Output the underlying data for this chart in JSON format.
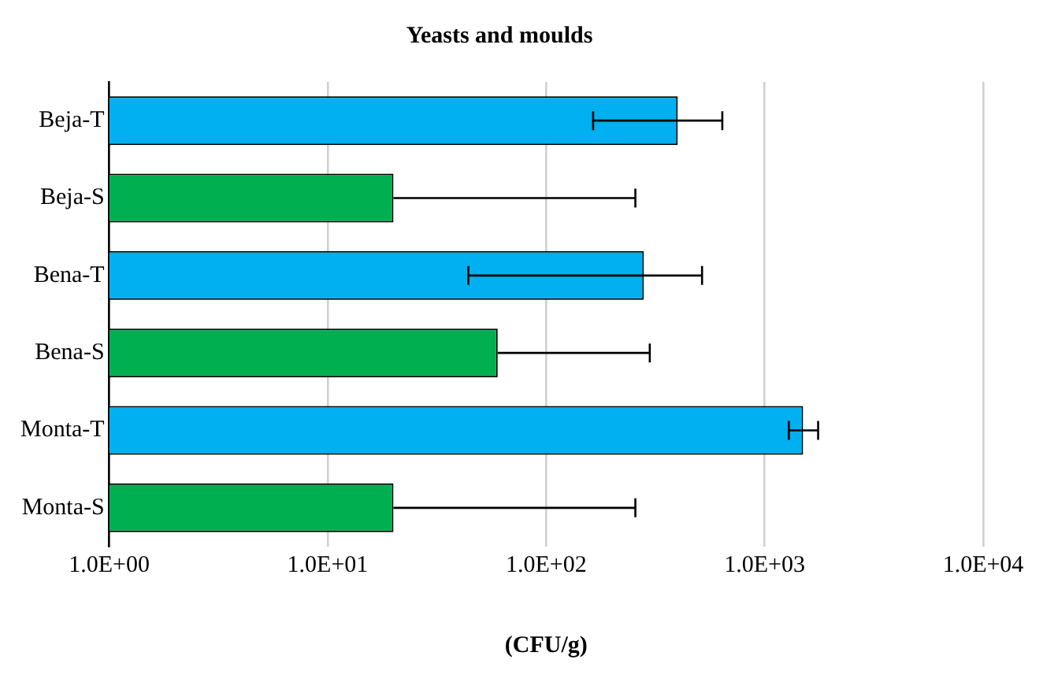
{
  "chart_data": {
    "type": "bar",
    "orientation": "horizontal",
    "title": "Yeasts and moulds",
    "xlabel": "(CFU/g)",
    "categories": [
      "Beja-T",
      "Beja-S",
      "Bena-T",
      "Bena-S",
      "Monta-T",
      "Monta-S"
    ],
    "values": [
      400,
      20,
      280,
      60,
      1500,
      20
    ],
    "colors": [
      "#00b0f0",
      "#00b050",
      "#00b0f0",
      "#00b050",
      "#00b0f0",
      "#00b050"
    ],
    "errors": [
      [
        164,
        640
      ],
      [
        20,
        256
      ],
      [
        44,
        517
      ],
      [
        60,
        298
      ],
      [
        1290,
        1757
      ],
      [
        20,
        256
      ]
    ],
    "log": "x",
    "xlim": [
      1,
      10000
    ],
    "xticks": [
      {
        "value": 1,
        "label": "1.0E+00"
      },
      {
        "value": 10,
        "label": "1.0E+01"
      },
      {
        "value": 100,
        "label": "1.0E+02"
      },
      {
        "value": 1000,
        "label": "1.0E+03"
      },
      {
        "value": 10000,
        "label": "1.0E+04"
      }
    ],
    "grid": "x",
    "legend": false
  }
}
